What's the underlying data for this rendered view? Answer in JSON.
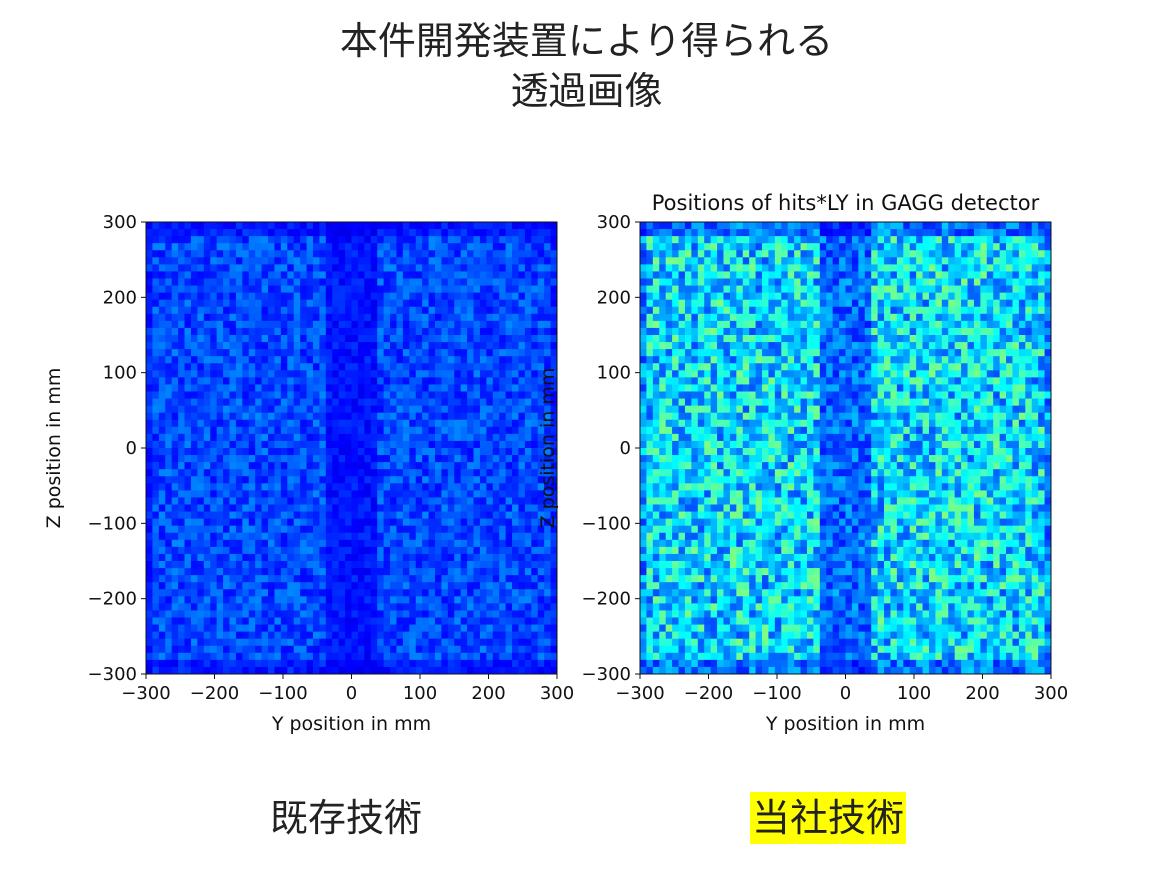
{
  "slide": {
    "title_line1": "本件開発装置により得られる",
    "title_line2": "透過画像",
    "caption_left": "既存技術",
    "caption_right": "当社技術",
    "highlight_color": "#ffff00"
  },
  "chart_data": [
    {
      "type": "heatmap",
      "title": "",
      "xlabel": "Y position in mm",
      "ylabel": "Z position in mm",
      "xlim": [
        -300,
        300
      ],
      "ylim": [
        -300,
        300
      ],
      "xticks": [
        -300,
        -200,
        -100,
        0,
        100,
        200,
        300
      ],
      "yticks": [
        -300,
        -200,
        -100,
        0,
        100,
        200,
        300
      ],
      "xtick_labels": [
        "−300",
        "−200",
        "−100",
        "0",
        "100",
        "200",
        "300"
      ],
      "ytick_labels": [
        "−300",
        "−200",
        "−100",
        "0",
        "100",
        "200",
        "300"
      ],
      "colormap": "jet",
      "intensity": 0.18,
      "grid": false
    },
    {
      "type": "heatmap",
      "title": "Positions of hits*LY in GAGG detector",
      "xlabel": "Y position in mm",
      "ylabel": "Z position in mm",
      "xlim": [
        -300,
        300
      ],
      "ylim": [
        -300,
        300
      ],
      "xticks": [
        -300,
        -200,
        -100,
        0,
        100,
        200,
        300
      ],
      "yticks": [
        -300,
        -200,
        -100,
        0,
        100,
        200,
        300
      ],
      "xtick_labels": [
        "−300",
        "−200",
        "−100",
        "0",
        "100",
        "200",
        "300"
      ],
      "ytick_labels": [
        "−300",
        "−200",
        "−100",
        "0",
        "100",
        "200",
        "300"
      ],
      "colormap": "jet",
      "intensity": 0.42,
      "grid": false
    }
  ]
}
